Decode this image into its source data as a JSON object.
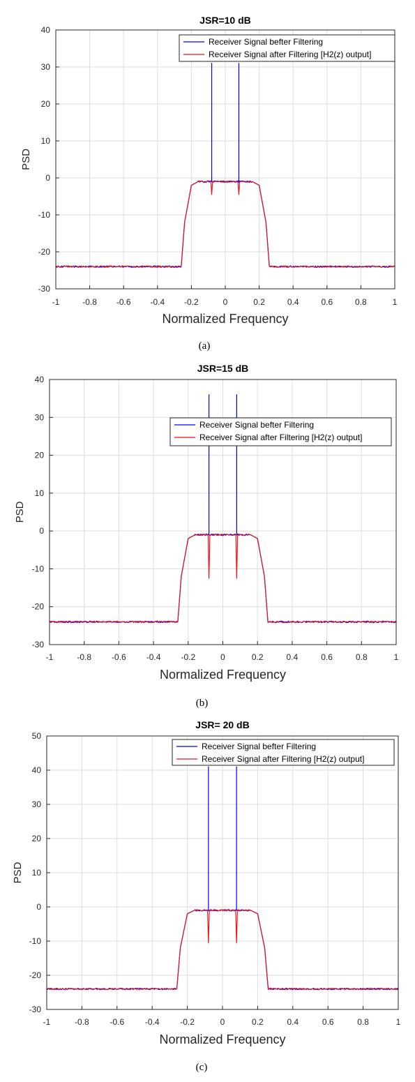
{
  "chart_data": [
    {
      "type": "line",
      "title": "JSR=10 dB",
      "caption": "(a)",
      "xlabel": "Normalized Frequency",
      "ylabel": "PSD",
      "xlim": [
        -1,
        1
      ],
      "ylim": [
        -30,
        40
      ],
      "xticks": [
        "-1",
        "-0.8",
        "-0.6",
        "-0.4",
        "-0.2",
        "0",
        "0.2",
        "0.4",
        "0.6",
        "0.8",
        "1"
      ],
      "yticks": [
        "-30",
        "-20",
        "-10",
        "0",
        "10",
        "20",
        "30",
        "40"
      ],
      "grid": true,
      "legend_position": "top-right",
      "colors": {
        "series0": "#0000ff",
        "series1": "#e4151b"
      },
      "series": [
        {
          "name": "Receiver Signal befter Filtering",
          "x": [
            -1,
            -0.26,
            -0.24,
            -0.2,
            -0.16,
            -0.08,
            -0.08,
            -0.08,
            0.08,
            0.08,
            0.08,
            0.16,
            0.2,
            0.24,
            0.26,
            1
          ],
          "values": [
            -24,
            -24,
            -12,
            -2,
            -1,
            -1,
            31,
            -1,
            -1,
            31,
            -1,
            -1,
            -2,
            -12,
            -24,
            -24
          ]
        },
        {
          "name": "Receiver Signal after Filtering [H2(z) output]",
          "x": [
            -1,
            -0.26,
            -0.24,
            -0.2,
            -0.16,
            -0.085,
            -0.08,
            -0.075,
            0.075,
            0.08,
            0.085,
            0.16,
            0.2,
            0.24,
            0.26,
            1
          ],
          "values": [
            -24,
            -24,
            -12,
            -2,
            -1,
            -1,
            -4.5,
            -1,
            -1,
            -4.5,
            -1,
            -1,
            -2,
            -12,
            -24,
            -24
          ]
        }
      ]
    },
    {
      "type": "line",
      "title": "JSR=15 dB",
      "caption": "(b)",
      "xlabel": "Normalized Frequency",
      "ylabel": "PSD",
      "xlim": [
        -1,
        1
      ],
      "ylim": [
        -30,
        40
      ],
      "xticks": [
        "-1",
        "-0.8",
        "-0.6",
        "-0.4",
        "-0.2",
        "0",
        "0.2",
        "0.4",
        "0.6",
        "0.8",
        "1"
      ],
      "yticks": [
        "-30",
        "-20",
        "-10",
        "0",
        "10",
        "20",
        "30",
        "40"
      ],
      "grid": true,
      "legend_position": "top-right",
      "colors": {
        "series0": "#0000ff",
        "series1": "#e4151b"
      },
      "series": [
        {
          "name": "Receiver Signal befter Filtering",
          "x": [
            -1,
            -0.26,
            -0.24,
            -0.2,
            -0.16,
            -0.08,
            -0.08,
            -0.08,
            0.08,
            0.08,
            0.08,
            0.16,
            0.2,
            0.24,
            0.26,
            1
          ],
          "values": [
            -24,
            -24,
            -12,
            -2,
            -1,
            -1,
            36,
            -1,
            -1,
            36,
            -1,
            -1,
            -2,
            -12,
            -24,
            -24
          ]
        },
        {
          "name": "Receiver Signal after Filtering [H2(z) output]",
          "x": [
            -1,
            -0.26,
            -0.24,
            -0.2,
            -0.16,
            -0.085,
            -0.08,
            -0.075,
            0.075,
            0.08,
            0.085,
            0.16,
            0.2,
            0.24,
            0.26,
            1
          ],
          "values": [
            -24,
            -24,
            -12,
            -2,
            -1,
            -1,
            -12.5,
            -1,
            -1,
            -12.5,
            -1,
            -1,
            -2,
            -12,
            -24,
            -24
          ]
        }
      ]
    },
    {
      "type": "line",
      "title": "JSR= 20 dB",
      "caption": "(c)",
      "xlabel": "Normalized Frequency",
      "ylabel": "PSD",
      "xlim": [
        -1,
        1
      ],
      "ylim": [
        -30,
        50
      ],
      "xticks": [
        "-1",
        "-0.8",
        "-0.6",
        "-0.4",
        "-0.2",
        "0",
        "0.2",
        "0.4",
        "0.6",
        "0.8",
        "1"
      ],
      "yticks": [
        "-30",
        "-20",
        "-10",
        "0",
        "10",
        "20",
        "30",
        "40",
        "50"
      ],
      "grid": true,
      "legend_position": "top-right",
      "colors": {
        "series0": "#0000ff",
        "series1": "#e4151b"
      },
      "series": [
        {
          "name": "Receiver Signal befter Filtering",
          "x": [
            -1,
            -0.26,
            -0.24,
            -0.2,
            -0.16,
            -0.08,
            -0.08,
            -0.08,
            0.08,
            0.08,
            0.08,
            0.16,
            0.2,
            0.24,
            0.26,
            1
          ],
          "values": [
            -24,
            -24,
            -12,
            -2,
            -1,
            -1,
            41,
            -1,
            -1,
            41,
            -1,
            -1,
            -2,
            -12,
            -24,
            -24
          ]
        },
        {
          "name": "Receiver Signal after Filtering [H2(z) output]",
          "x": [
            -1,
            -0.26,
            -0.24,
            -0.2,
            -0.16,
            -0.085,
            -0.08,
            -0.075,
            0.075,
            0.08,
            0.085,
            0.16,
            0.2,
            0.24,
            0.26,
            1
          ],
          "values": [
            -24,
            -24,
            -12,
            -2,
            -1,
            -1,
            -10.5,
            -1,
            -1,
            -10.5,
            -1,
            -1,
            -2,
            -12,
            -24,
            -24
          ]
        }
      ]
    }
  ]
}
